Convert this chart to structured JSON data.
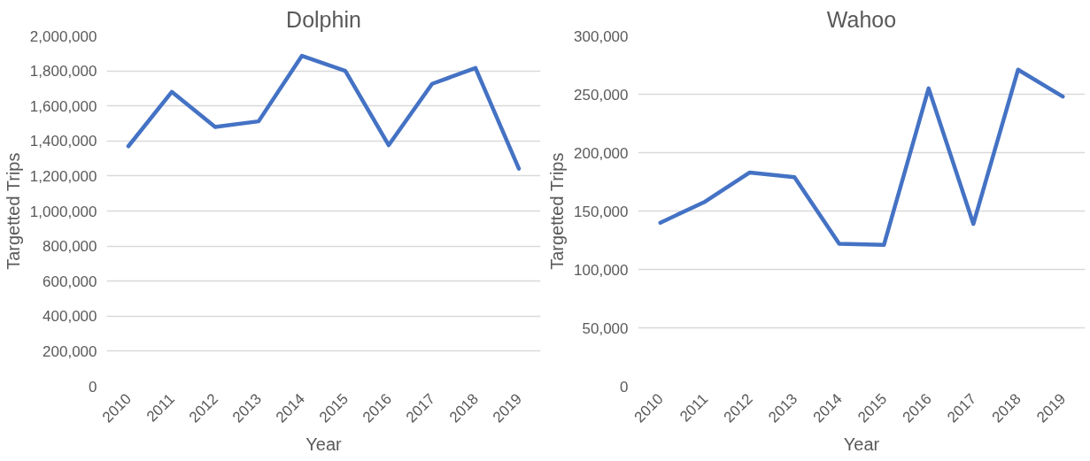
{
  "chart_data": [
    {
      "type": "line",
      "title": "Dolphin",
      "xlabel": "Year",
      "ylabel": "Targetted Trips",
      "categories": [
        "2010",
        "2011",
        "2012",
        "2013",
        "2014",
        "2015",
        "2016",
        "2017",
        "2018",
        "2019"
      ],
      "series": [
        {
          "color": "#4472c4",
          "values": [
            1370000,
            1680000,
            1480000,
            1512000,
            1886000,
            1800000,
            1376000,
            1726000,
            1816000,
            1242000
          ]
        }
      ],
      "ylim": [
        0,
        2000000
      ],
      "yticks": [
        {
          "value": 0,
          "label": "0"
        },
        {
          "value": 200000,
          "label": "200,000"
        },
        {
          "value": 400000,
          "label": "400,000"
        },
        {
          "value": 600000,
          "label": "600,000"
        },
        {
          "value": 800000,
          "label": "800,000"
        },
        {
          "value": 1000000,
          "label": "1,000,000"
        },
        {
          "value": 1200000,
          "label": "1,200,000"
        },
        {
          "value": 1400000,
          "label": "1,400,000"
        },
        {
          "value": 1600000,
          "label": "1,600,000"
        },
        {
          "value": 1800000,
          "label": "1,800,000"
        },
        {
          "value": 2000000,
          "label": "2,000,000"
        }
      ],
      "grid": "y"
    },
    {
      "type": "line",
      "title": "Wahoo",
      "xlabel": "Year",
      "ylabel": "Targetted Trips",
      "categories": [
        "2010",
        "2011",
        "2012",
        "2013",
        "2014",
        "2015",
        "2016",
        "2017",
        "2018",
        "2019"
      ],
      "series": [
        {
          "color": "#4472c4",
          "values": [
            140000,
            158000,
            183000,
            179000,
            122000,
            121000,
            255000,
            139000,
            271000,
            248000
          ]
        }
      ],
      "ylim": [
        0,
        300000
      ],
      "yticks": [
        {
          "value": 0,
          "label": "0"
        },
        {
          "value": 50000,
          "label": "50,000"
        },
        {
          "value": 100000,
          "label": "100,000"
        },
        {
          "value": 150000,
          "label": "150,000"
        },
        {
          "value": 200000,
          "label": "200,000"
        },
        {
          "value": 250000,
          "label": "250,000"
        },
        {
          "value": 300000,
          "label": "300,000"
        }
      ],
      "grid": "y"
    }
  ]
}
